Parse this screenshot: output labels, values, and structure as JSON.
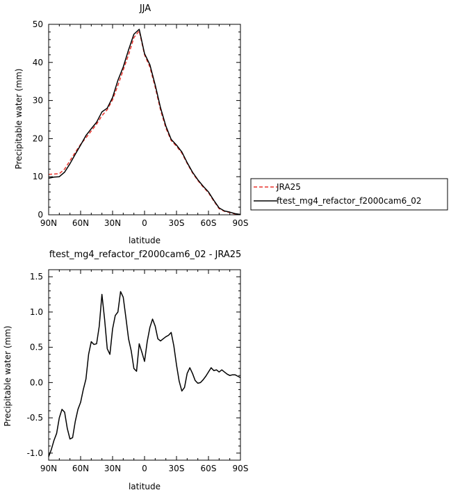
{
  "chart_data": [
    {
      "type": "line",
      "title": "JJA",
      "xlabel": "latitude",
      "ylabel": "Precipitable water (mm)",
      "xlim": [
        90,
        -90
      ],
      "ylim": [
        0,
        50
      ],
      "xticks": [
        90,
        60,
        30,
        0,
        -30,
        -60,
        -90
      ],
      "xtick_labels": [
        "90N",
        "60N",
        "30N",
        "0",
        "30S",
        "60S",
        "90S"
      ],
      "yticks": [
        0,
        10,
        20,
        30,
        40,
        50
      ],
      "ytick_labels": [
        "0",
        "10",
        "20",
        "30",
        "40",
        "50"
      ],
      "grid": false,
      "legend": "right",
      "colors": {
        "jra25": "#e8322b",
        "model": "#000000"
      },
      "series": [
        {
          "name": "JRA25",
          "style": "dashed",
          "color": "#e8322b",
          "x": [
            90,
            85,
            80,
            75,
            70,
            65,
            60,
            55,
            50,
            45,
            40,
            35,
            30,
            25,
            20,
            15,
            10,
            5,
            0,
            -5,
            -10,
            -15,
            -20,
            -25,
            -30,
            -35,
            -40,
            -45,
            -50,
            -55,
            -60,
            -65,
            -70,
            -75,
            -80,
            -85,
            -90
          ],
          "y": [
            10.6,
            10.7,
            10.8,
            12.0,
            14.2,
            16.4,
            18.5,
            20.2,
            22.0,
            23.8,
            26.0,
            27.6,
            30.2,
            34.0,
            38.0,
            42.0,
            46.5,
            48.3,
            42.0,
            38.8,
            33.5,
            27.5,
            22.8,
            19.5,
            18.0,
            16.2,
            13.5,
            11.0,
            9.0,
            7.3,
            5.8,
            3.6,
            1.6,
            0.9,
            0.6,
            0.2,
            0.1
          ]
        },
        {
          "name": "ftest_mg4_refactor_f2000cam6_02",
          "style": "solid",
          "color": "#000000",
          "x": [
            90,
            85,
            80,
            75,
            70,
            65,
            60,
            55,
            50,
            45,
            40,
            35,
            30,
            25,
            20,
            15,
            10,
            5,
            0,
            -5,
            -10,
            -15,
            -20,
            -25,
            -30,
            -35,
            -40,
            -45,
            -50,
            -55,
            -60,
            -65,
            -70,
            -75,
            -80,
            -85,
            -90
          ],
          "y": [
            9.6,
            9.9,
            10.0,
            11.2,
            13.4,
            15.9,
            18.3,
            20.8,
            22.6,
            24.3,
            27.0,
            28.0,
            30.8,
            35.3,
            38.8,
            43.3,
            47.4,
            48.7,
            42.3,
            39.4,
            34.1,
            28.1,
            23.3,
            19.8,
            18.3,
            16.5,
            13.7,
            11.2,
            9.2,
            7.5,
            6.0,
            3.8,
            1.8,
            1.0,
            0.7,
            0.3,
            0.1
          ]
        }
      ]
    },
    {
      "type": "line",
      "title": "ftest_mg4_refactor_f2000cam6_02 - JRA25",
      "xlabel": "latitude",
      "ylabel": "Precipitable water (mm)",
      "xlim": [
        90,
        -90
      ],
      "ylim": [
        -1.1,
        1.6
      ],
      "xticks": [
        90,
        60,
        30,
        0,
        -30,
        -60,
        -90
      ],
      "xtick_labels": [
        "90N",
        "60N",
        "30N",
        "0",
        "30S",
        "60S",
        "90S"
      ],
      "yticks": [
        -1.0,
        -0.5,
        0.0,
        0.5,
        1.0,
        1.5
      ],
      "ytick_labels": [
        "-1.0",
        "-0.5",
        "0.0",
        "0.5",
        "1.0",
        "1.5"
      ],
      "grid": false,
      "series": [
        {
          "color": "#000000",
          "x": [
            90,
            87.5,
            85,
            82.5,
            80,
            77.5,
            75,
            72.5,
            70,
            67.5,
            65,
            62.5,
            60,
            57.5,
            55,
            52.5,
            50,
            47.5,
            45,
            42.5,
            40,
            37.5,
            35,
            32.5,
            30,
            27.5,
            25,
            22.5,
            20,
            17.5,
            15,
            12.5,
            10,
            7.5,
            5,
            2.5,
            0,
            -2.5,
            -5,
            -7.5,
            -10,
            -12.5,
            -15,
            -17.5,
            -20,
            -22.5,
            -25,
            -27.5,
            -30,
            -32.5,
            -35,
            -37.5,
            -40,
            -42.5,
            -45,
            -47.5,
            -50,
            -52.5,
            -55,
            -57.5,
            -60,
            -62.5,
            -65,
            -67.5,
            -70,
            -72.5,
            -75,
            -77.5,
            -80,
            -82.5,
            -85,
            -87.5,
            -90
          ],
          "y": [
            -1.05,
            -0.95,
            -0.82,
            -0.72,
            -0.5,
            -0.38,
            -0.42,
            -0.65,
            -0.8,
            -0.78,
            -0.55,
            -0.38,
            -0.28,
            -0.1,
            0.05,
            0.4,
            0.58,
            0.54,
            0.55,
            0.8,
            1.25,
            0.9,
            0.48,
            0.4,
            0.76,
            0.95,
            1.0,
            1.29,
            1.21,
            0.92,
            0.62,
            0.45,
            0.2,
            0.16,
            0.55,
            0.43,
            0.3,
            0.58,
            0.78,
            0.9,
            0.8,
            0.62,
            0.59,
            0.62,
            0.65,
            0.67,
            0.71,
            0.52,
            0.25,
            0.02,
            -0.12,
            -0.07,
            0.13,
            0.21,
            0.13,
            0.03,
            -0.01,
            0.0,
            0.04,
            0.09,
            0.15,
            0.21,
            0.17,
            0.18,
            0.15,
            0.18,
            0.15,
            0.12,
            0.1,
            0.11,
            0.11,
            0.09,
            0.07
          ]
        }
      ]
    }
  ]
}
